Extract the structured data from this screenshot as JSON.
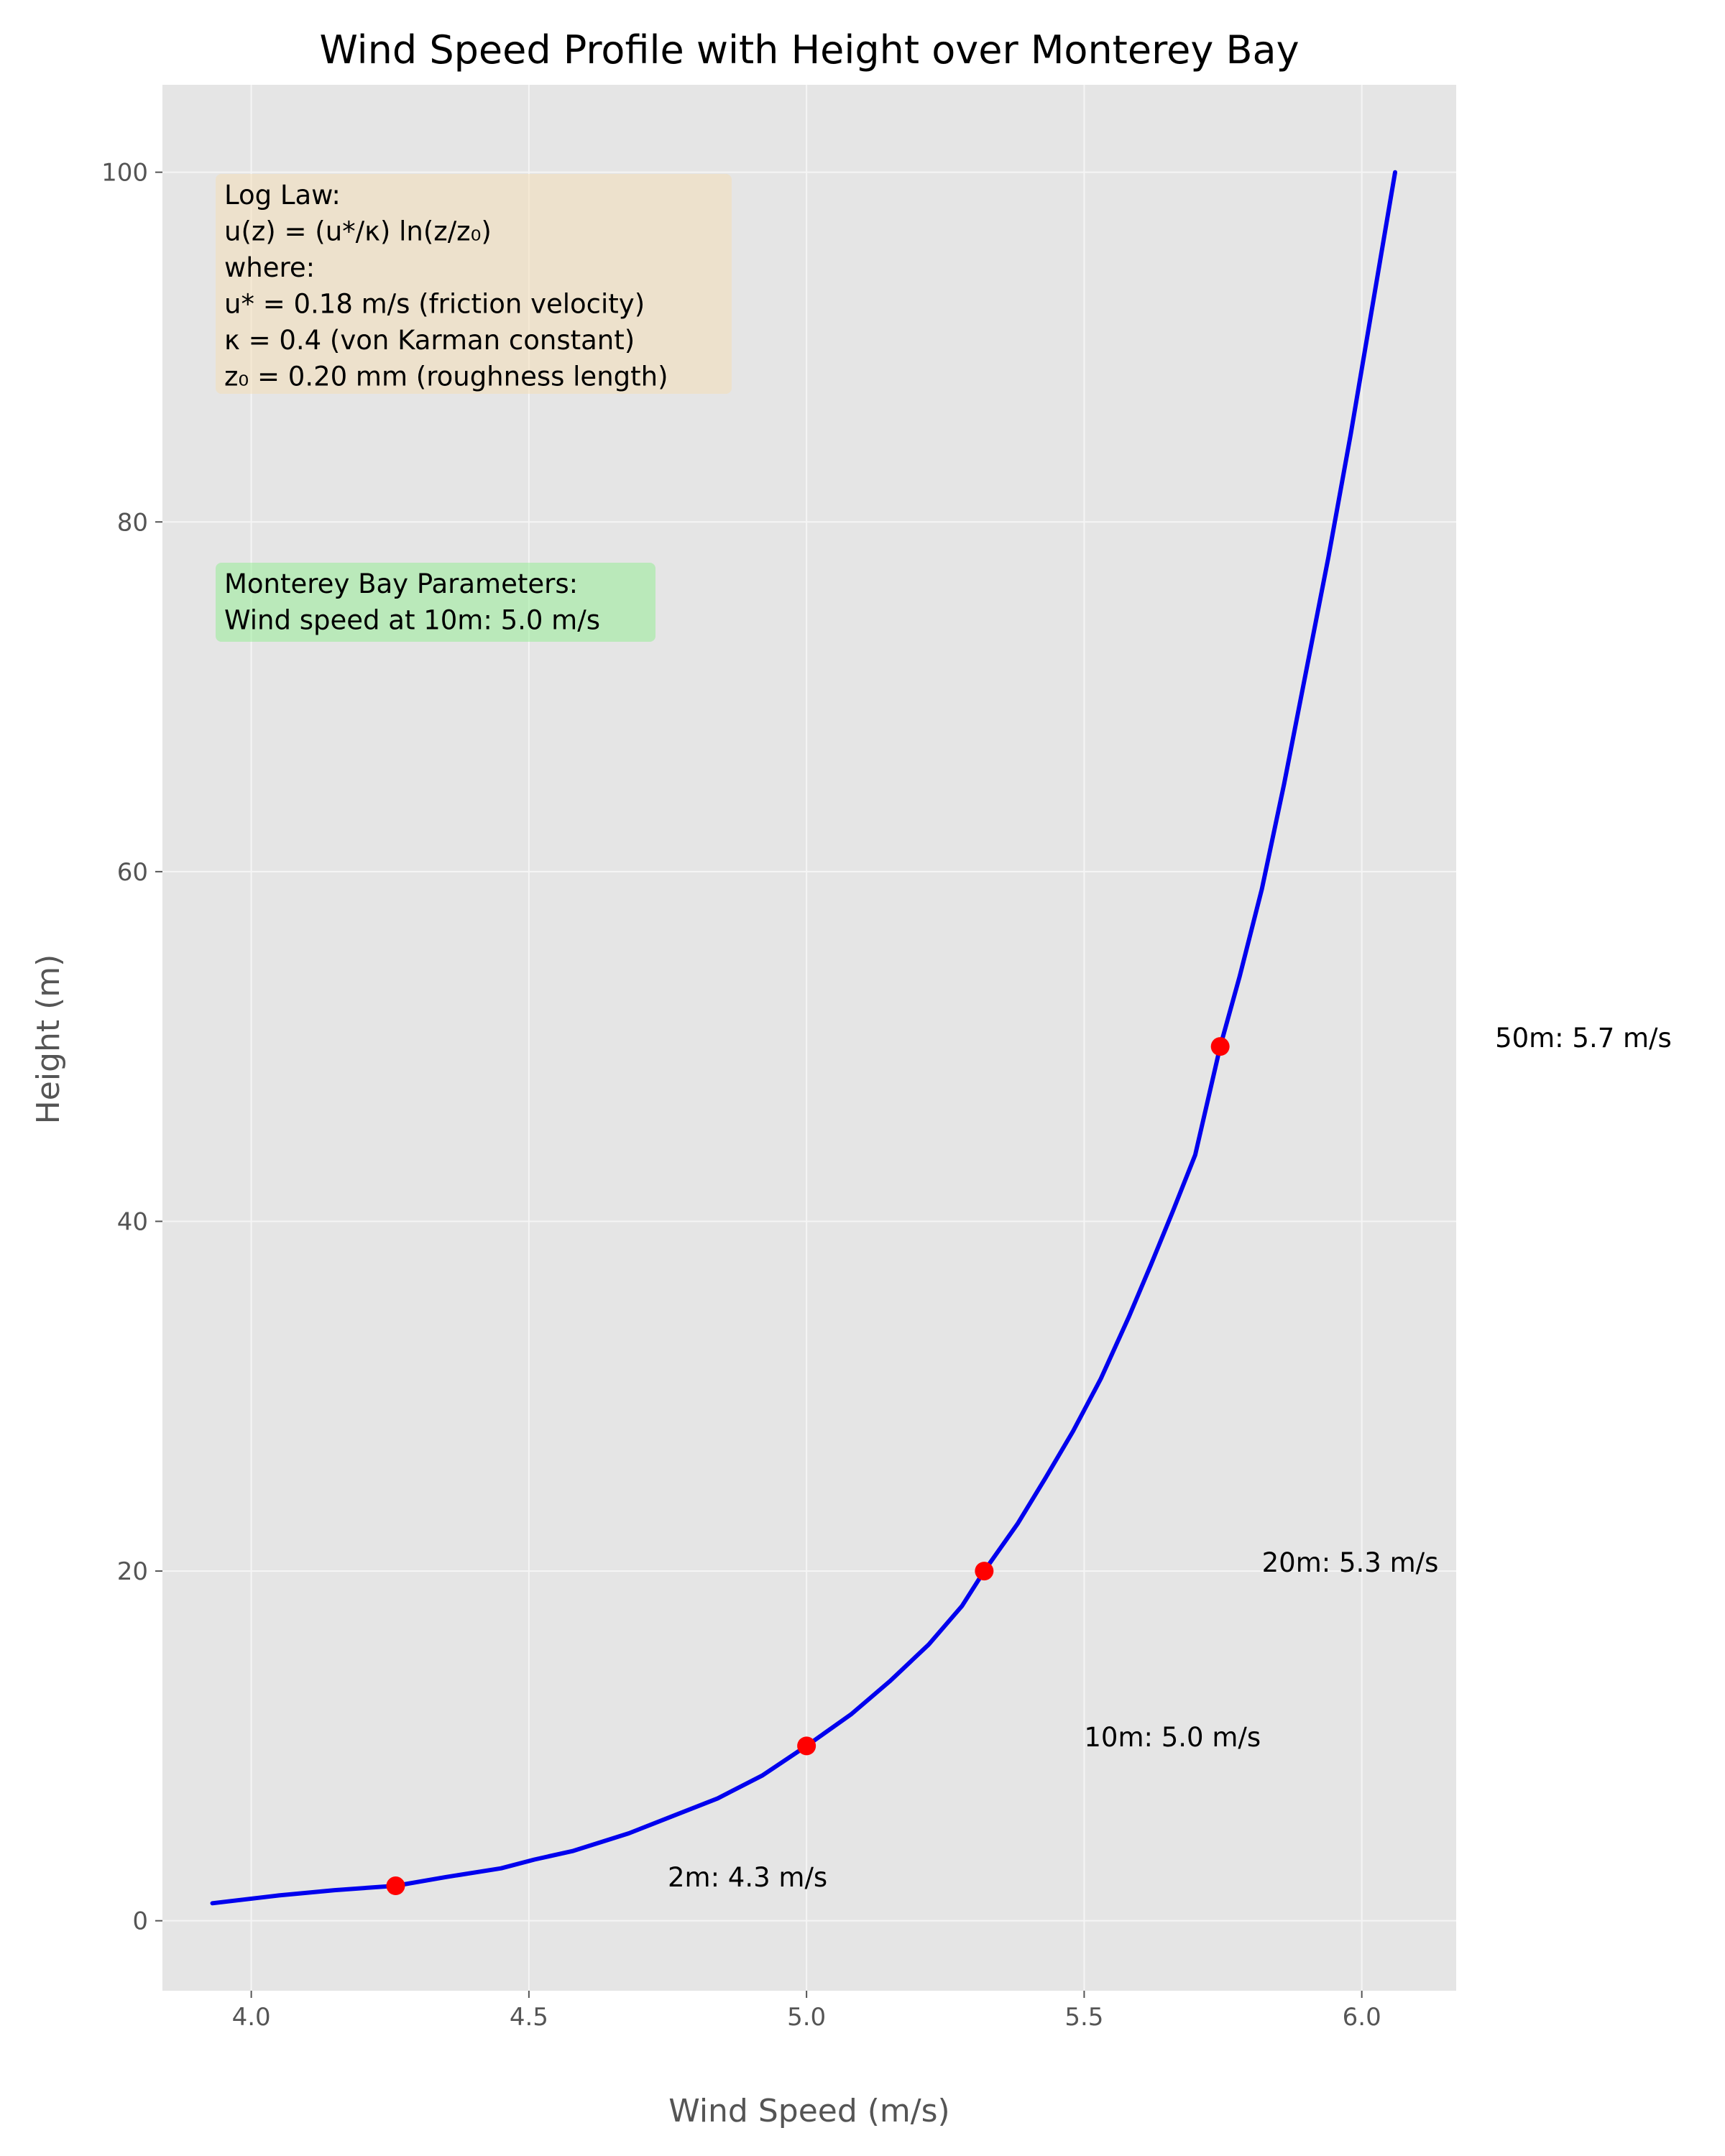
{
  "chart_data": {
    "type": "line",
    "title": "Wind Speed Profile with Height over Monterey Bay",
    "xlabel": "Wind Speed (m/s)",
    "ylabel": "Height (m)",
    "xlim": [
      3.84,
      6.17
    ],
    "ylim": [
      -4.0,
      105.0
    ],
    "xticks": [
      4.0,
      4.5,
      5.0,
      5.5,
      6.0
    ],
    "xtick_labels": [
      "4.0",
      "4.5",
      "5.0",
      "5.5",
      "6.0"
    ],
    "yticks": [
      0,
      20,
      40,
      60,
      80,
      100
    ],
    "ytick_labels": [
      "0",
      "20",
      "40",
      "60",
      "80",
      "100"
    ],
    "grid": true,
    "colors": {
      "plot_background": "#e5e5e5",
      "grid": "#f5f5f5",
      "line": "#0000ee",
      "marker": "#ff0000",
      "equation_box": "#f5deb3",
      "parameters_box": "#90ee90"
    },
    "series": [
      {
        "x": [
          3.93,
          4.05,
          4.15,
          4.26,
          4.35,
          4.45,
          4.51,
          4.58,
          4.68,
          4.76,
          4.84,
          4.92,
          5.0,
          5.08,
          5.15,
          5.22,
          5.28,
          5.32,
          5.38,
          5.43,
          5.48,
          5.53,
          5.58,
          5.62,
          5.66,
          5.7,
          5.745,
          5.78,
          5.82,
          5.86,
          5.9,
          5.94,
          5.98,
          6.02,
          6.06
        ],
        "y": [
          1,
          1.45,
          1.75,
          2,
          2.5,
          3,
          3.5,
          4,
          5,
          6,
          7,
          8.3,
          10,
          11.8,
          13.7,
          15.8,
          18,
          20,
          22.7,
          25.3,
          28,
          31,
          34.5,
          37.5,
          40.6,
          43.8,
          50,
          54,
          59,
          65,
          71.5,
          78,
          85,
          92.5,
          100
        ]
      }
    ],
    "highlight_points": {
      "x": [
        4.26,
        5.0,
        5.32,
        5.745
      ],
      "y": [
        2,
        10,
        20,
        50
      ]
    },
    "annotations": [
      {
        "text": "2m: 4.3 m/s",
        "x": 4.75,
        "y": 2.5
      },
      {
        "text": "10m: 5.0 m/s",
        "x": 5.5,
        "y": 10.5
      },
      {
        "text": "20m: 5.3 m/s",
        "x": 5.82,
        "y": 20.5
      },
      {
        "text": "50m: 5.7 m/s",
        "x": 6.24,
        "y": 50.5
      }
    ],
    "text_boxes": [
      {
        "id": "equation",
        "lines": [
          "Log Law:",
          "u(z) = (u*/κ) ln(z/z₀)",
          "where:",
          "u* = 0.18 m/s (friction velocity)",
          "κ = 0.4 (von Karman constant)",
          "z₀ = 0.20 mm (roughness length)"
        ]
      },
      {
        "id": "parameters",
        "lines": [
          "Monterey Bay Parameters:",
          "Wind speed at 10m: 5.0 m/s"
        ]
      }
    ]
  }
}
